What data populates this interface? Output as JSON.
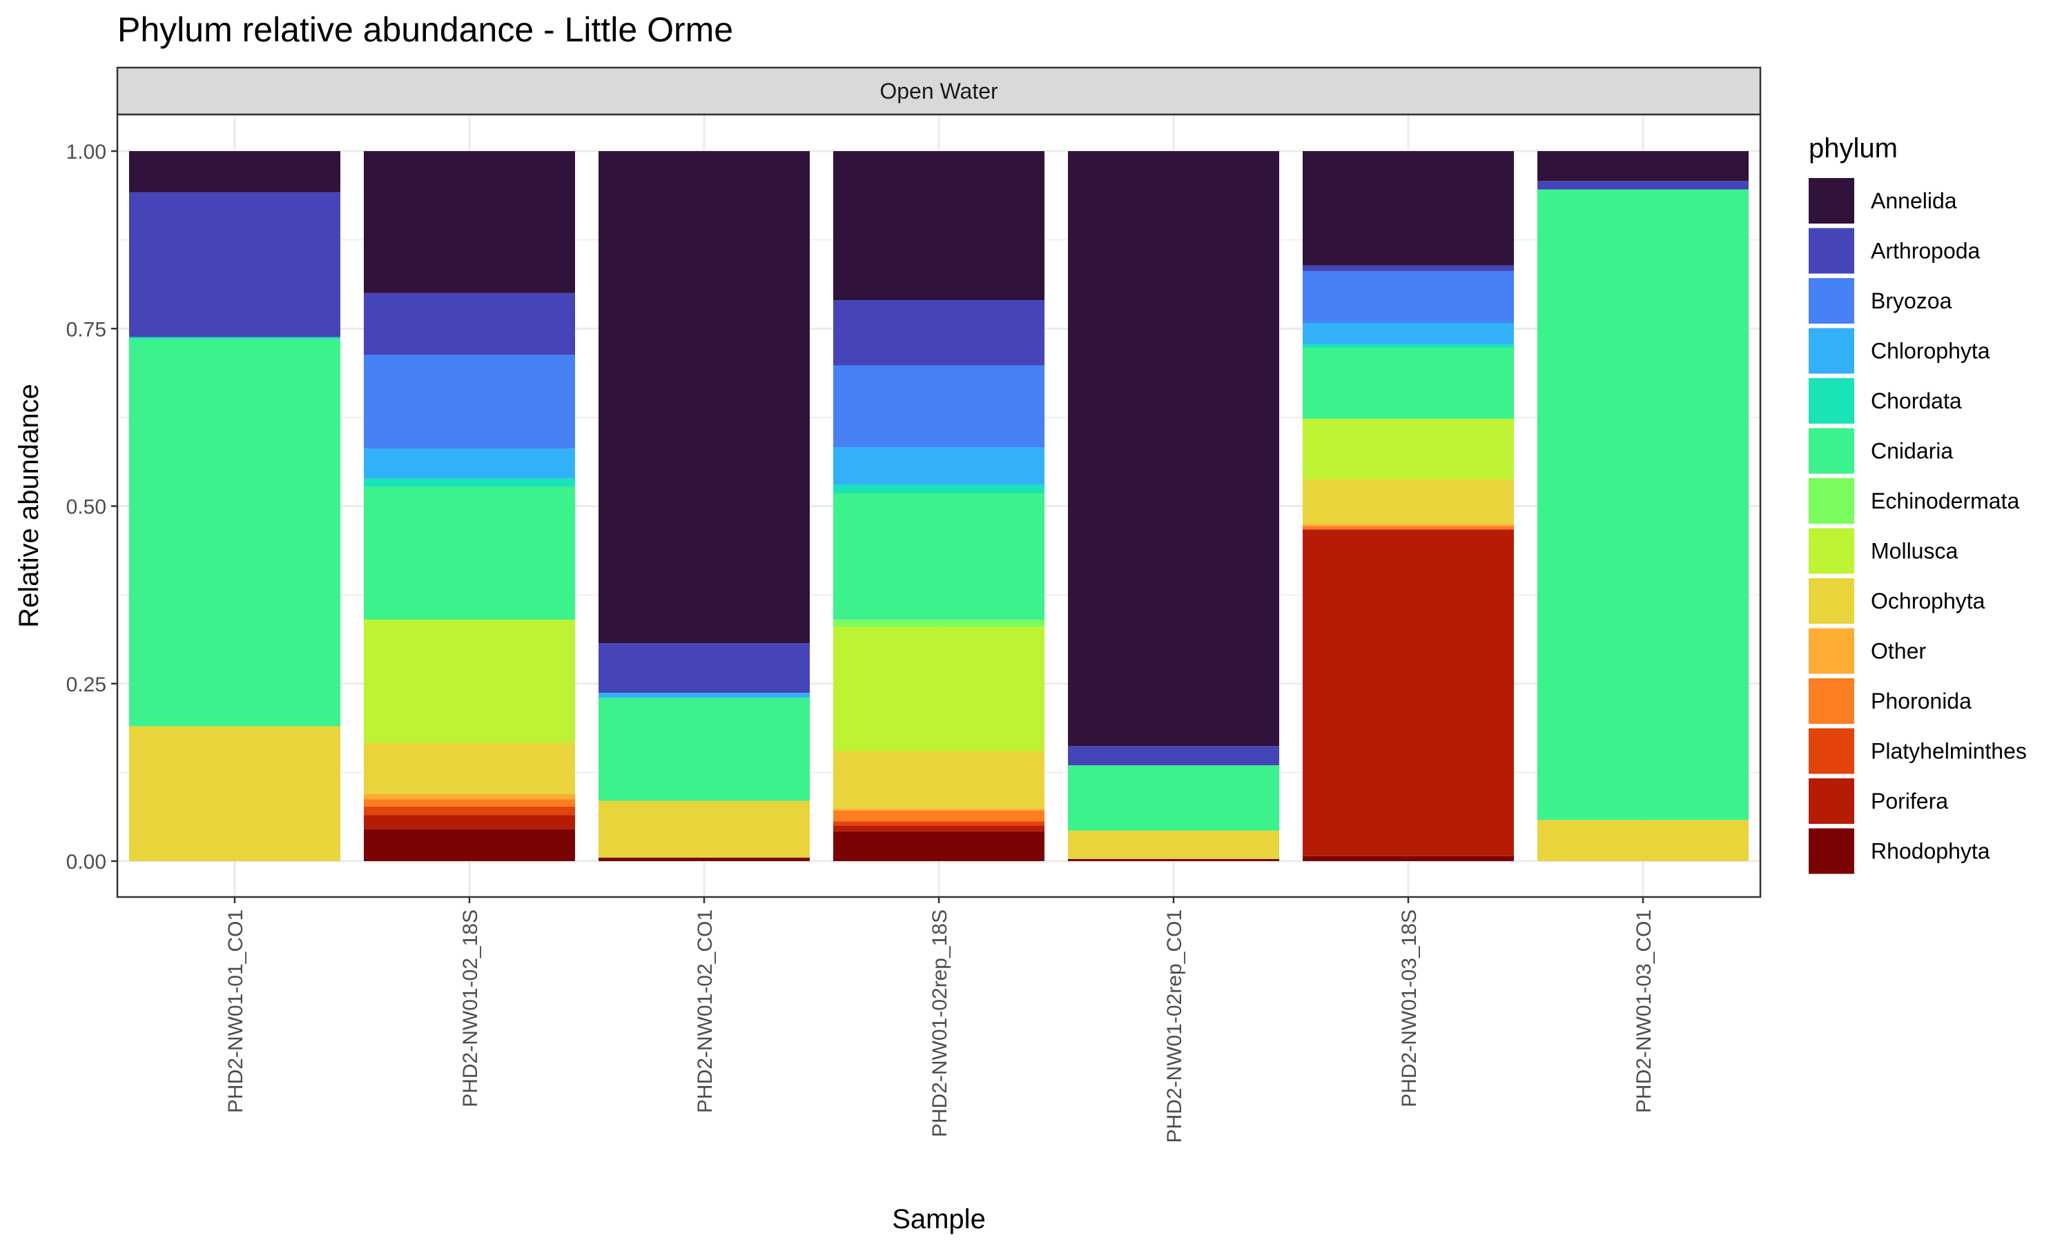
{
  "chart_data": {
    "type": "bar",
    "stacked": true,
    "title": "Phylum relative abundance - Little Orme",
    "facet": "Open Water",
    "xlabel": "Sample",
    "ylabel": "Relative abundance",
    "ylim": [
      0,
      1
    ],
    "yticks": [
      "0.00",
      "0.25",
      "0.50",
      "0.75",
      "1.00"
    ],
    "grid": true,
    "legend_title": "phylum",
    "legend_position": "right",
    "categories": [
      "PHD2-NW01-01_CO1",
      "PHD2-NW01-02_18S",
      "PHD2-NW01-02_CO1",
      "PHD2-NW01-02rep_18S",
      "PHD2-NW01-02rep_CO1",
      "PHD2-NW01-03_18S",
      "PHD2-NW01-03_CO1"
    ],
    "series": [
      {
        "name": "Rhodophyta",
        "color": "#7a0403",
        "values": [
          0,
          0.045,
          0.005,
          0.042,
          0.003,
          0.007,
          0
        ]
      },
      {
        "name": "Porifera",
        "color": "#b51c03",
        "values": [
          0,
          0.02,
          0,
          0.008,
          0,
          0.46,
          0
        ]
      },
      {
        "name": "Platyhelminthes",
        "color": "#e3440a",
        "values": [
          0,
          0.012,
          0,
          0.006,
          0,
          0,
          0
        ]
      },
      {
        "name": "Phoronida",
        "color": "#fb7e21",
        "values": [
          0,
          0.01,
          0,
          0.015,
          0,
          0.005,
          0
        ]
      },
      {
        "name": "Other",
        "color": "#fdac34",
        "values": [
          0,
          0.008,
          0,
          0.003,
          0,
          0.003,
          0
        ]
      },
      {
        "name": "Ochrophyta",
        "color": "#e9d43c",
        "values": [
          0.19,
          0.072,
          0.08,
          0.081,
          0.04,
          0.063,
          0.058
        ]
      },
      {
        "name": "Mollusca",
        "color": "#bef334",
        "values": [
          0,
          0.173,
          0,
          0.175,
          0,
          0.085,
          0
        ]
      },
      {
        "name": "Echinodermata",
        "color": "#7bfc5f",
        "values": [
          0,
          0,
          0,
          0.01,
          0,
          0,
          0
        ]
      },
      {
        "name": "Cnidaria",
        "color": "#3bf28c",
        "values": [
          0.545,
          0.187,
          0.145,
          0.178,
          0.092,
          0.1,
          0.888
        ]
      },
      {
        "name": "Chordata",
        "color": "#1ae4b6",
        "values": [
          0.003,
          0.012,
          0,
          0.012,
          0,
          0.005,
          0
        ]
      },
      {
        "name": "Chlorophyta",
        "color": "#33b0fa",
        "values": [
          0,
          0.042,
          0.007,
          0.053,
          0,
          0.03,
          0
        ]
      },
      {
        "name": "Bryozoa",
        "color": "#4681f6",
        "values": [
          0,
          0.132,
          0,
          0.115,
          0,
          0.073,
          0
        ]
      },
      {
        "name": "Arthropoda",
        "color": "#4545b9",
        "values": [
          0.204,
          0.087,
          0.07,
          0.092,
          0.027,
          0.008,
          0.012
        ]
      },
      {
        "name": "Annelida",
        "color": "#30123b",
        "values": [
          0.058,
          0.2,
          0.693,
          0.21,
          0.838,
          0.161,
          0.042
        ]
      }
    ],
    "legend_order": [
      "Annelida",
      "Arthropoda",
      "Bryozoa",
      "Chlorophyta",
      "Chordata",
      "Cnidaria",
      "Echinodermata",
      "Mollusca",
      "Ochrophyta",
      "Other",
      "Phoronida",
      "Platyhelminthes",
      "Porifera",
      "Rhodophyta"
    ]
  }
}
